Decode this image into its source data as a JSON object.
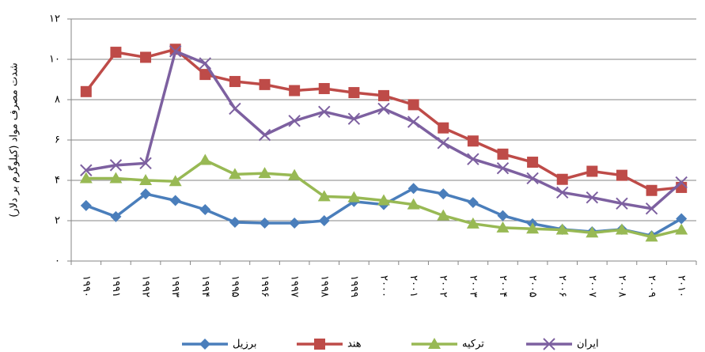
{
  "chart_data": {
    "type": "line",
    "y_label": "شدت مصرف مواد (کیلوگرم بر دلار)",
    "categories": [
      "۱۹۹۰",
      "۱۹۹۱",
      "۱۹۹۲",
      "۱۹۹۳",
      "۱۹۹۴",
      "۱۹۹۵",
      "۱۹۹۶",
      "۱۹۹۷",
      "۱۹۹۸",
      "۱۹۹۹",
      "۲۰۰۰",
      "۲۰۰۱",
      "۲۰۰۲",
      "۲۰۰۳",
      "۲۰۰۴",
      "۲۰۰۵",
      "۲۰۰۶",
      "۲۰۰۷",
      "۲۰۰۸",
      "۲۰۰۹",
      "۲۰۱۰"
    ],
    "series": [
      {
        "name": "برزیل",
        "color": "#4a7ebb",
        "marker": "diamond",
        "values": [
          2.75,
          2.2,
          3.33,
          3.0,
          2.55,
          1.92,
          1.88,
          1.88,
          2.0,
          2.95,
          2.8,
          3.6,
          3.33,
          2.9,
          2.25,
          1.85,
          1.57,
          1.45,
          1.57,
          1.25,
          2.1
        ]
      },
      {
        "name": "هند",
        "color": "#be4b48",
        "marker": "square",
        "values": [
          8.4,
          10.35,
          10.1,
          10.5,
          9.25,
          8.9,
          8.75,
          8.45,
          8.55,
          8.35,
          8.2,
          7.75,
          6.6,
          5.95,
          5.3,
          4.9,
          4.05,
          4.45,
          4.25,
          3.5,
          3.65
        ]
      },
      {
        "name": "ترکیه",
        "color": "#98b954",
        "marker": "triangle",
        "values": [
          4.1,
          4.1,
          4.0,
          3.95,
          5.0,
          4.3,
          4.35,
          4.25,
          3.2,
          3.15,
          3.0,
          2.8,
          2.25,
          1.85,
          1.65,
          1.6,
          1.55,
          1.4,
          1.55,
          1.2,
          1.55
        ]
      },
      {
        "name": "ایران",
        "color": "#7d60a0",
        "marker": "x",
        "values": [
          4.5,
          4.75,
          4.85,
          10.4,
          9.8,
          7.55,
          6.25,
          6.95,
          7.4,
          7.05,
          7.55,
          6.9,
          5.85,
          5.05,
          4.6,
          4.1,
          3.4,
          3.15,
          2.85,
          2.6,
          3.9
        ]
      }
    ],
    "ylim": [
      0,
      12
    ],
    "yticks": [
      {
        "value": 0,
        "label": "۰"
      },
      {
        "value": 2,
        "label": "۲"
      },
      {
        "value": 4,
        "label": "۴"
      },
      {
        "value": 6,
        "label": "۶"
      },
      {
        "value": 8,
        "label": "۸"
      },
      {
        "value": 10,
        "label": "۱۰"
      },
      {
        "value": 12,
        "label": "۱۲"
      }
    ],
    "grid": true,
    "legend": "bottom"
  }
}
